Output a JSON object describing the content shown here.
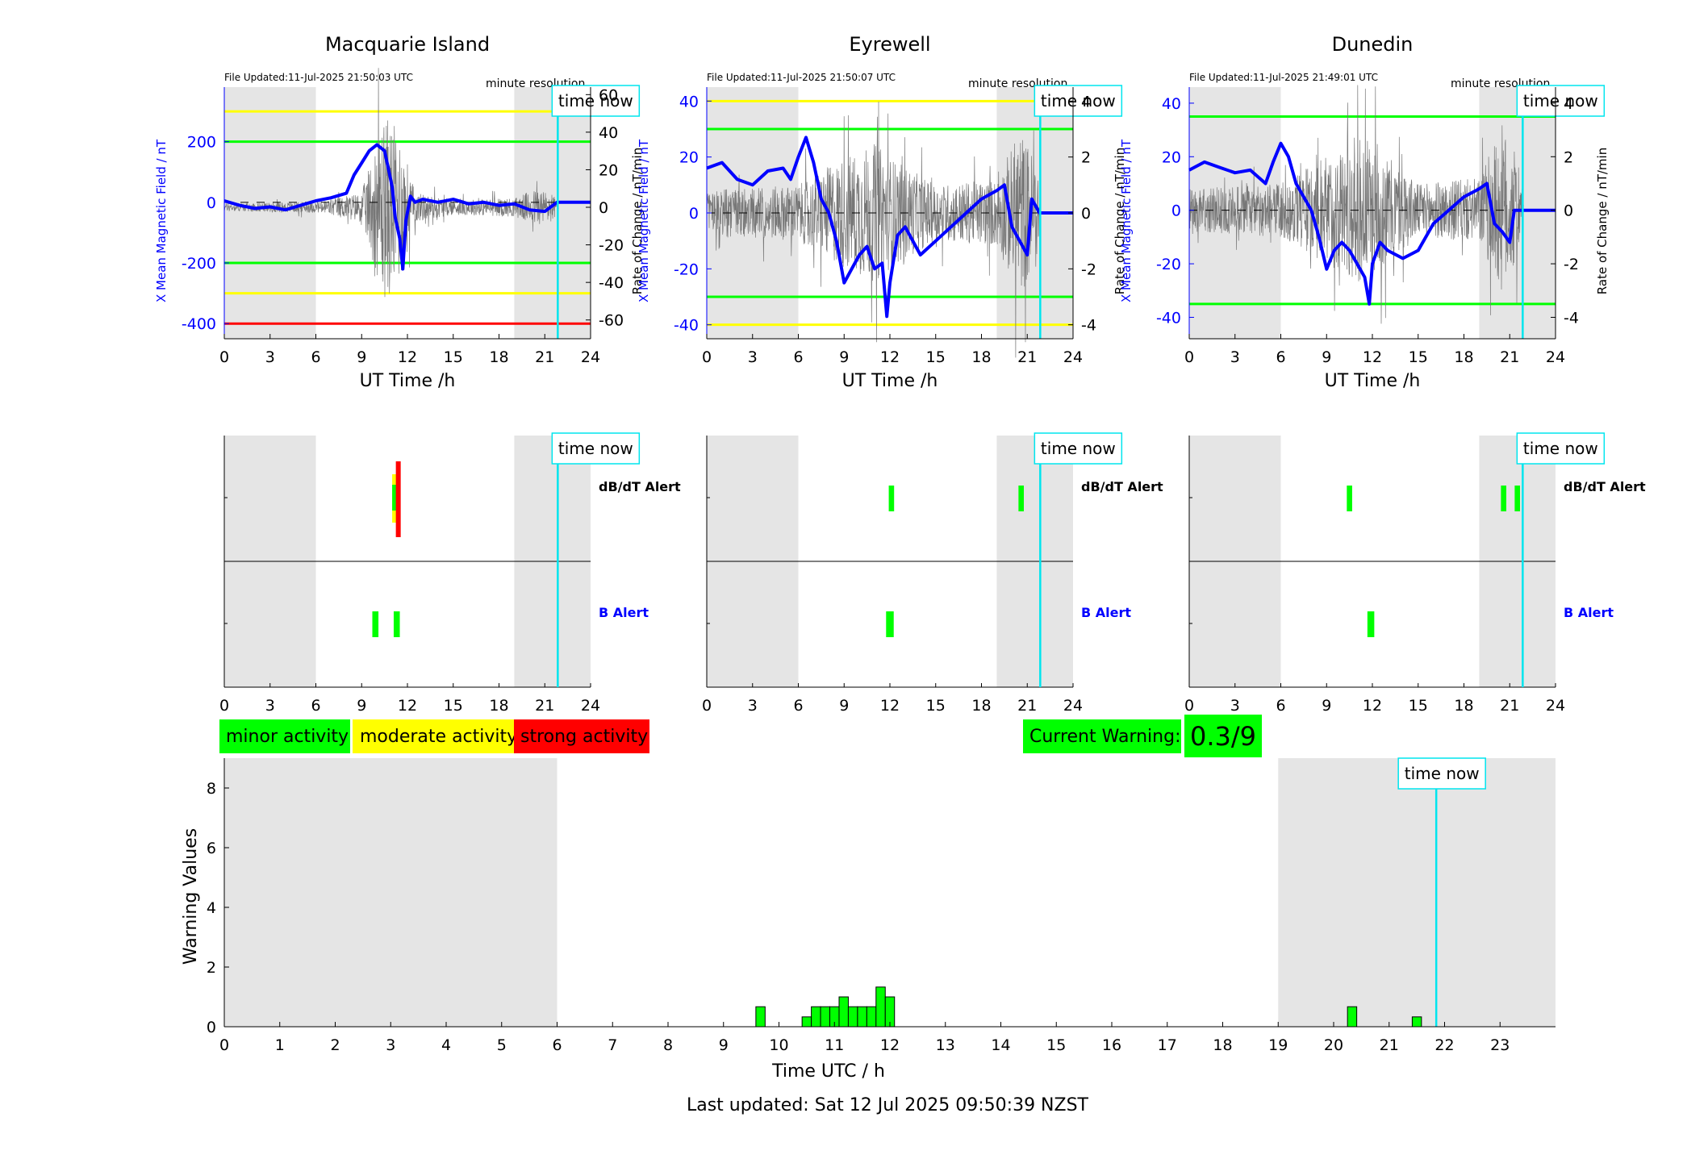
{
  "page": {
    "x_title": "UT Time /h",
    "left_ylabel": "X Mean Magnetic Field / nT",
    "right_ylabel": "Rate of Change / nT/min",
    "minute_resolution": "minute resolution",
    "time_now": "time now",
    "dbdt_alert": "dB/dT Alert",
    "b_alert": "B Alert",
    "legend": {
      "minor": "minor activity",
      "moderate": "moderate activity",
      "strong": "strong activity"
    },
    "current_warning_label": "Current Warning:",
    "current_warning_value": "0.3/9",
    "bottom_xlabel": "Time UTC / h",
    "bottom_ylabel": "Warning Values",
    "last_updated": "Last updated: Sat 12 Jul 2025 09:50:39 NZST"
  },
  "colors": {
    "blue": "#0000ff",
    "green": "#00ff00",
    "yellow": "#ffff00",
    "red": "#ff0000",
    "cyan": "#00e5ee",
    "shade": "#e5e5e5",
    "trace": "#777777"
  },
  "chart_data": [
    {
      "type": "line",
      "station": "Macquarie Island",
      "file_updated": "File Updated:11-Jul-2025 21:50:03 UTC",
      "xlim": [
        0,
        24
      ],
      "xticks": [
        0,
        3,
        6,
        9,
        12,
        15,
        18,
        21,
        24
      ],
      "ylim": [
        -450,
        380
      ],
      "yticks": [
        -400,
        -200,
        0,
        200
      ],
      "y2lim": [
        -70,
        64
      ],
      "y2ticks": [
        -60,
        -40,
        -20,
        0,
        20,
        40,
        60
      ],
      "night_shading": [
        [
          0,
          6
        ],
        [
          19,
          24
        ]
      ],
      "time_now": 21.85,
      "thresholds": [
        {
          "y": 300,
          "color": "yellow"
        },
        {
          "y": 200,
          "color": "green"
        },
        {
          "y": -200,
          "color": "green"
        },
        {
          "y": -300,
          "color": "yellow"
        },
        {
          "y": -400,
          "color": "red"
        }
      ],
      "x_mean": [
        [
          0,
          5
        ],
        [
          1,
          -10
        ],
        [
          2,
          -20
        ],
        [
          3,
          -15
        ],
        [
          4,
          -25
        ],
        [
          5,
          -10
        ],
        [
          6,
          5
        ],
        [
          7,
          15
        ],
        [
          8,
          30
        ],
        [
          8.5,
          90
        ],
        [
          9,
          130
        ],
        [
          9.5,
          170
        ],
        [
          10,
          190
        ],
        [
          10.5,
          170
        ],
        [
          10.8,
          100
        ],
        [
          11,
          50
        ],
        [
          11.2,
          -50
        ],
        [
          11.5,
          -120
        ],
        [
          11.7,
          -220
        ],
        [
          11.9,
          -60
        ],
        [
          12.2,
          20
        ],
        [
          12.5,
          0
        ],
        [
          13,
          10
        ],
        [
          14,
          0
        ],
        [
          15,
          10
        ],
        [
          16,
          -5
        ],
        [
          17,
          0
        ],
        [
          18,
          -10
        ],
        [
          19,
          -5
        ],
        [
          20,
          -25
        ],
        [
          21,
          -30
        ],
        [
          21.8,
          0
        ],
        [
          24,
          0
        ]
      ],
      "roc_amplitude": [
        [
          0,
          2
        ],
        [
          6,
          3
        ],
        [
          9,
          8
        ],
        [
          10.5,
          50
        ],
        [
          11.5,
          40
        ],
        [
          12.5,
          8
        ],
        [
          15,
          4
        ],
        [
          19,
          5
        ],
        [
          20.5,
          10
        ],
        [
          21.5,
          8
        ],
        [
          22,
          0
        ]
      ],
      "dbdt_alerts": [
        {
          "t": 11.2,
          "w": 0.4,
          "levels": [
            "yellow",
            "green",
            "red"
          ]
        }
      ],
      "b_alerts": [
        {
          "t": 9.9,
          "w": 0.4
        },
        {
          "t": 11.3,
          "w": 0.4
        }
      ]
    },
    {
      "type": "line",
      "station": "Eyrewell",
      "file_updated": "File Updated:11-Jul-2025 21:50:07 UTC",
      "xlim": [
        0,
        24
      ],
      "xticks": [
        0,
        3,
        6,
        9,
        12,
        15,
        18,
        21,
        24
      ],
      "ylim": [
        -45,
        45
      ],
      "yticks": [
        -40,
        -20,
        0,
        20,
        40
      ],
      "y2lim": [
        -4.5,
        4.5
      ],
      "y2ticks": [
        -4,
        -2,
        0,
        2,
        4
      ],
      "night_shading": [
        [
          0,
          6
        ],
        [
          19,
          24
        ]
      ],
      "time_now": 21.85,
      "thresholds": [
        {
          "y": 40,
          "color": "yellow"
        },
        {
          "y": 30,
          "color": "green"
        },
        {
          "y": -30,
          "color": "green"
        },
        {
          "y": -40,
          "color": "yellow"
        }
      ],
      "x_mean": [
        [
          0,
          16
        ],
        [
          1,
          18
        ],
        [
          2,
          12
        ],
        [
          3,
          10
        ],
        [
          4,
          15
        ],
        [
          5,
          16
        ],
        [
          5.5,
          12
        ],
        [
          6,
          20
        ],
        [
          6.5,
          27
        ],
        [
          7,
          18
        ],
        [
          7.5,
          5
        ],
        [
          8,
          0
        ],
        [
          8.5,
          -10
        ],
        [
          9,
          -25
        ],
        [
          9.5,
          -20
        ],
        [
          10,
          -15
        ],
        [
          10.5,
          -12
        ],
        [
          11,
          -20
        ],
        [
          11.5,
          -18
        ],
        [
          11.8,
          -37
        ],
        [
          12,
          -25
        ],
        [
          12.5,
          -8
        ],
        [
          13,
          -5
        ],
        [
          14,
          -15
        ],
        [
          15,
          -10
        ],
        [
          16,
          -5
        ],
        [
          17,
          0
        ],
        [
          18,
          5
        ],
        [
          19,
          8
        ],
        [
          19.5,
          10
        ],
        [
          20,
          -5
        ],
        [
          20.5,
          -10
        ],
        [
          21,
          -15
        ],
        [
          21.3,
          5
        ],
        [
          21.8,
          0
        ],
        [
          24,
          0
        ]
      ],
      "roc_amplitude": [
        [
          0,
          0.8
        ],
        [
          6,
          1
        ],
        [
          9,
          2
        ],
        [
          11,
          2.5
        ],
        [
          12,
          2
        ],
        [
          15,
          1
        ],
        [
          19,
          1.2
        ],
        [
          20.5,
          3
        ],
        [
          21.5,
          2
        ],
        [
          22,
          0
        ]
      ],
      "dbdt_alerts": [
        {
          "t": 12.1,
          "w": 0.35,
          "levels": [
            "green"
          ]
        },
        {
          "t": 20.6,
          "w": 0.35,
          "levels": [
            "green"
          ]
        }
      ],
      "b_alerts": [
        {
          "t": 12.0,
          "w": 0.5
        }
      ]
    },
    {
      "type": "line",
      "station": "Dunedin",
      "file_updated": "File Updated:11-Jul-2025 21:49:01 UTC",
      "xlim": [
        0,
        24
      ],
      "xticks": [
        0,
        3,
        6,
        9,
        12,
        15,
        18,
        21,
        24
      ],
      "ylim": [
        -48,
        46
      ],
      "yticks": [
        -40,
        -20,
        0,
        20,
        40
      ],
      "y2lim": [
        -4.8,
        4.6
      ],
      "y2ticks": [
        -4,
        -2,
        0,
        2,
        4
      ],
      "night_shading": [
        [
          0,
          6
        ],
        [
          19,
          24
        ]
      ],
      "time_now": 21.85,
      "thresholds": [
        {
          "y": 35,
          "color": "green"
        },
        {
          "y": -35,
          "color": "green"
        }
      ],
      "x_mean": [
        [
          0,
          15
        ],
        [
          1,
          18
        ],
        [
          2,
          16
        ],
        [
          3,
          14
        ],
        [
          4,
          15
        ],
        [
          5,
          10
        ],
        [
          5.5,
          18
        ],
        [
          6,
          25
        ],
        [
          6.5,
          20
        ],
        [
          7,
          10
        ],
        [
          7.5,
          5
        ],
        [
          8,
          0
        ],
        [
          8.5,
          -10
        ],
        [
          9,
          -22
        ],
        [
          9.5,
          -15
        ],
        [
          10,
          -12
        ],
        [
          10.5,
          -15
        ],
        [
          11,
          -20
        ],
        [
          11.5,
          -25
        ],
        [
          11.8,
          -35
        ],
        [
          12,
          -20
        ],
        [
          12.5,
          -12
        ],
        [
          13,
          -15
        ],
        [
          14,
          -18
        ],
        [
          15,
          -15
        ],
        [
          16,
          -5
        ],
        [
          17,
          0
        ],
        [
          18,
          5
        ],
        [
          19,
          8
        ],
        [
          19.5,
          10
        ],
        [
          20,
          -5
        ],
        [
          20.5,
          -8
        ],
        [
          21,
          -12
        ],
        [
          21.3,
          0
        ],
        [
          21.8,
          0
        ],
        [
          24,
          0
        ]
      ],
      "roc_amplitude": [
        [
          0,
          0.8
        ],
        [
          6,
          1
        ],
        [
          9,
          2
        ],
        [
          11,
          2.8
        ],
        [
          12,
          2.5
        ],
        [
          15,
          1
        ],
        [
          19,
          1.2
        ],
        [
          20.5,
          3.2
        ],
        [
          21.5,
          2
        ],
        [
          22,
          0
        ]
      ],
      "dbdt_alerts": [
        {
          "t": 10.5,
          "w": 0.35,
          "levels": [
            "green"
          ]
        },
        {
          "t": 20.6,
          "w": 0.35,
          "levels": [
            "green"
          ]
        },
        {
          "t": 21.5,
          "w": 0.35,
          "levels": [
            "green"
          ]
        }
      ],
      "b_alerts": [
        {
          "t": 11.9,
          "w": 0.45
        }
      ]
    },
    {
      "type": "bar",
      "title": "",
      "xlabel": "Time UTC / h",
      "ylabel": "Warning Values",
      "xlim": [
        0,
        24
      ],
      "ylim": [
        0,
        9
      ],
      "xticks": [
        0,
        1,
        2,
        3,
        4,
        5,
        6,
        7,
        8,
        9,
        10,
        11,
        12,
        13,
        14,
        15,
        16,
        17,
        18,
        19,
        20,
        21,
        22,
        23
      ],
      "yticks": [
        0,
        2,
        4,
        6,
        8
      ],
      "night_shading": [
        [
          0,
          6
        ],
        [
          19,
          24
        ]
      ],
      "time_now": 21.85,
      "bar_width_h": 0.1667,
      "bars": [
        {
          "t": 9.667,
          "v": 0.67
        },
        {
          "t": 10.5,
          "v": 0.33
        },
        {
          "t": 10.667,
          "v": 0.67
        },
        {
          "t": 10.833,
          "v": 0.67
        },
        {
          "t": 11.0,
          "v": 0.67
        },
        {
          "t": 11.167,
          "v": 1.0
        },
        {
          "t": 11.333,
          "v": 0.67
        },
        {
          "t": 11.5,
          "v": 0.67
        },
        {
          "t": 11.667,
          "v": 0.67
        },
        {
          "t": 11.833,
          "v": 1.33
        },
        {
          "t": 12.0,
          "v": 1.0
        },
        {
          "t": 20.333,
          "v": 0.67
        },
        {
          "t": 21.5,
          "v": 0.33
        }
      ]
    }
  ]
}
